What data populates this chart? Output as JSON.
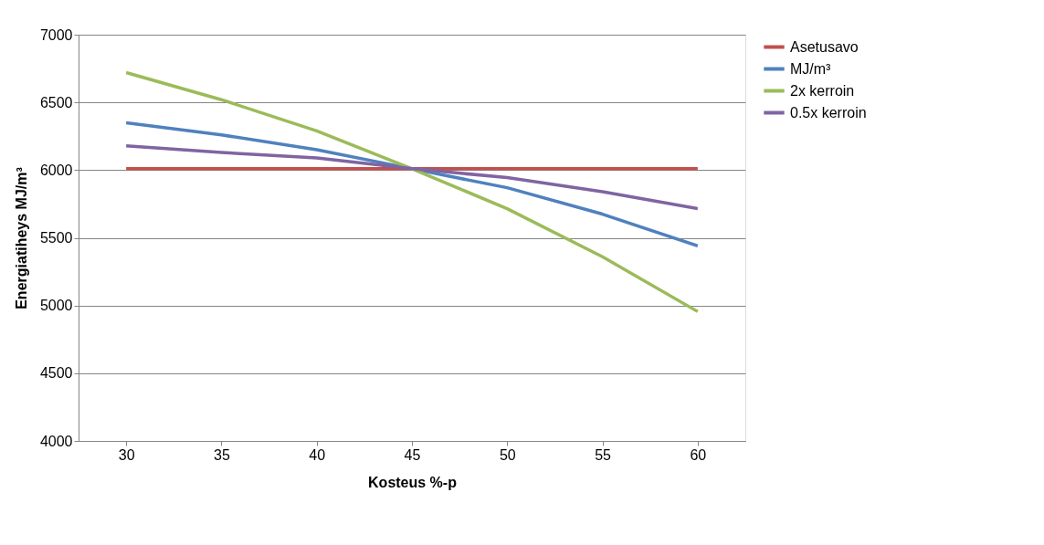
{
  "chart_data": {
    "type": "line",
    "xlabel": "Kosteus %-p",
    "ylabel": "Energiatiheys MJ/m³",
    "categories": [
      "30",
      "35",
      "40",
      "45",
      "50",
      "55",
      "60"
    ],
    "series": [
      {
        "name": "Asetusavo",
        "color": "#c0504d",
        "values": [
          6010,
          6010,
          6010,
          6010,
          6010,
          6010,
          6010
        ]
      },
      {
        "name": "MJ/m³",
        "color": "#4f81bd",
        "values": [
          6350,
          6260,
          6150,
          6010,
          5870,
          5675,
          5440
        ]
      },
      {
        "name": "2x kerroin",
        "color": "#9bbb59",
        "values": [
          6720,
          6520,
          6290,
          6010,
          5715,
          5360,
          4955
        ]
      },
      {
        "name": "0.5x kerroin",
        "color": "#8064a2",
        "values": [
          6180,
          6130,
          6090,
          6010,
          5945,
          5840,
          5715
        ]
      }
    ],
    "ylim": [
      4000,
      7000
    ],
    "yticks": [
      4000,
      4500,
      5000,
      5500,
      6000,
      6500,
      7000
    ],
    "grid": "y",
    "legend": "right",
    "marker": "none",
    "line_style": "solid"
  }
}
